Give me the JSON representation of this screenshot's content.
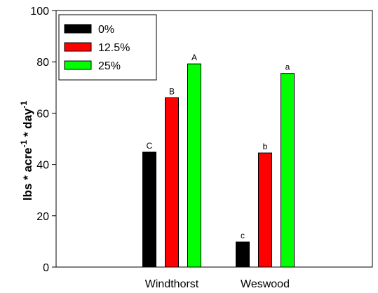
{
  "chart_data": {
    "type": "bar",
    "categories": [
      "Windthorst",
      "Weswood"
    ],
    "series": [
      {
        "name": "0%",
        "color": "#000000",
        "values": [
          44.8,
          9.8
        ],
        "labels": [
          "C",
          "c"
        ]
      },
      {
        "name": "12.5%",
        "color": "#ff0000",
        "values": [
          66.0,
          44.5
        ],
        "labels": [
          "B",
          "b"
        ]
      },
      {
        "name": "25%",
        "color": "#00ff00",
        "values": [
          79.2,
          75.5
        ],
        "labels": [
          "A",
          "a"
        ]
      }
    ],
    "ylabel": {
      "base": "lbs * acre",
      "exp1": "-1",
      "mid": " * day",
      "exp2": "-1"
    },
    "ylim": [
      0,
      100
    ],
    "yticks": [
      0,
      20,
      40,
      60,
      80,
      100
    ],
    "legend_position": "top-left",
    "grid": false
  }
}
